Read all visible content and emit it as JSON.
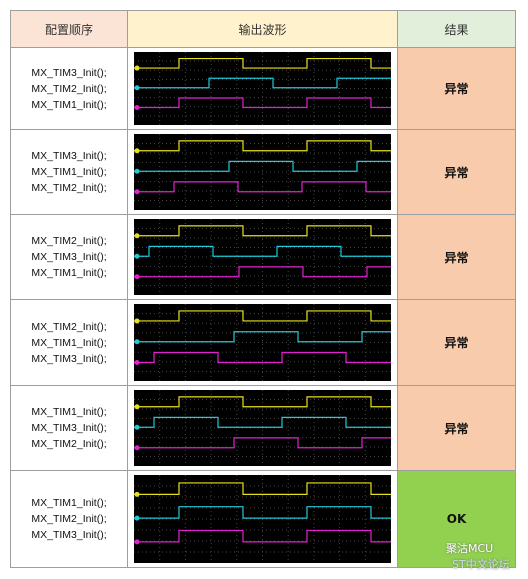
{
  "header": {
    "order": "配置顺序",
    "waveform": "输出波形",
    "result": "结果"
  },
  "rows": [
    {
      "config": [
        "MX_TIM3_Init();",
        "MX_TIM2_Init();",
        "MX_TIM1_Init();"
      ],
      "result": "异常"
    },
    {
      "config": [
        "MX_TIM3_Init();",
        "MX_TIM1_Init();",
        "MX_TIM2_Init();"
      ],
      "result": "异常"
    },
    {
      "config": [
        "MX_TIM2_Init();",
        "MX_TIM3_Init();",
        "MX_TIM1_Init();"
      ],
      "result": "异常"
    },
    {
      "config": [
        "MX_TIM2_Init();",
        "MX_TIM1_Init();",
        "MX_TIM3_Init();"
      ],
      "result": "异常"
    },
    {
      "config": [
        "MX_TIM1_Init();",
        "MX_TIM3_Init();",
        "MX_TIM2_Init();"
      ],
      "result": "异常"
    },
    {
      "config": [
        "MX_TIM1_Init();",
        "MX_TIM2_Init();",
        "MX_TIM3_Init();"
      ],
      "result": "OK"
    }
  ],
  "watermark": {
    "account": "聚沽MCU",
    "forum": "ST中文论坛"
  }
}
